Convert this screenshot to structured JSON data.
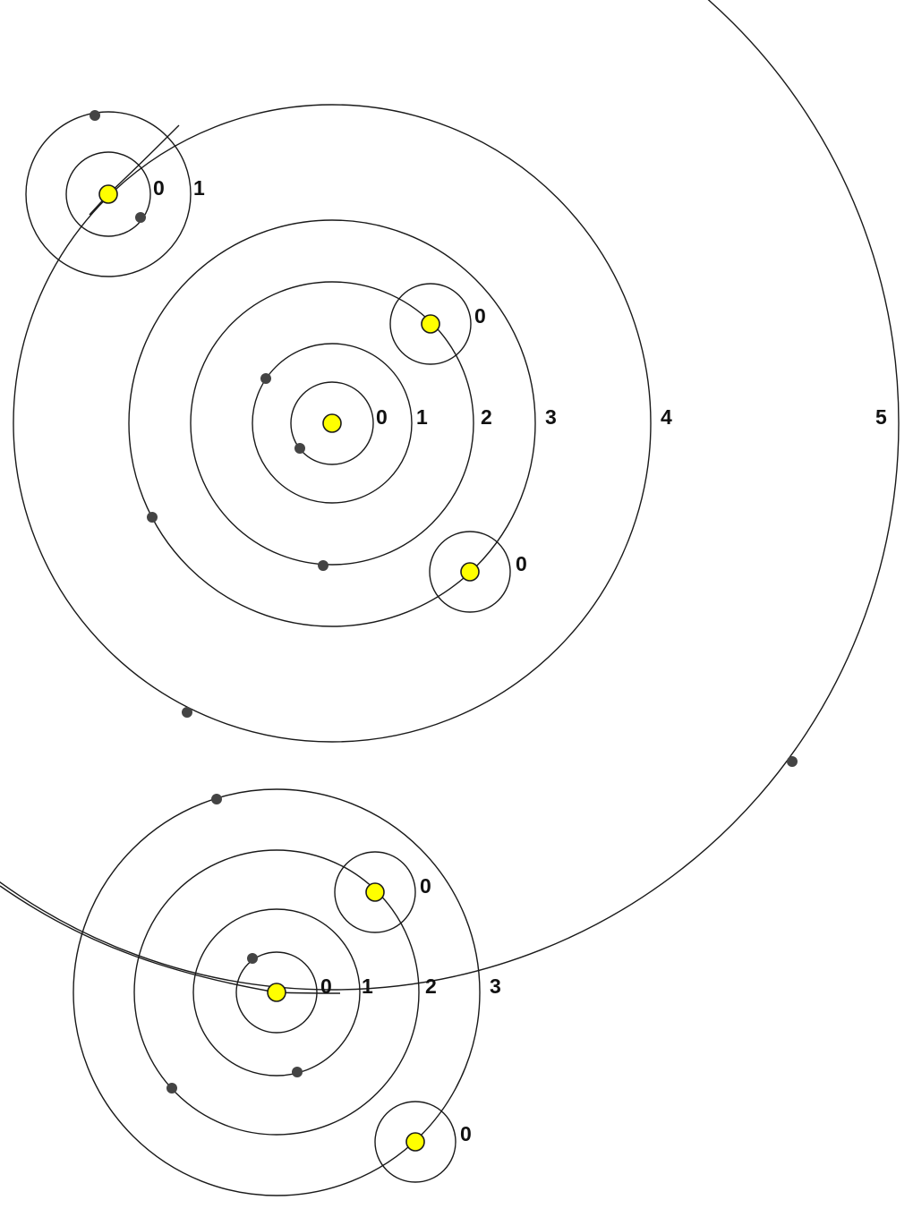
{
  "colors": {
    "star_fill": "#ffff00",
    "line": "#1a1a1a",
    "dot": "#444444",
    "background": "#ffffff"
  },
  "labels": {
    "tl_0": "0",
    "tl_1": "1",
    "main_0": "0",
    "main_1": "1",
    "main_2": "2",
    "main_3": "3",
    "main_4": "4",
    "main_5": "5",
    "sat_upper_0": "0",
    "sat_lower_0": "0",
    "bottom_0": "0",
    "bottom_1": "1",
    "bottom_2": "2",
    "bottom_3": "3",
    "bottom_sat_upper_0": "0",
    "bottom_sat_lower_0": "0"
  }
}
